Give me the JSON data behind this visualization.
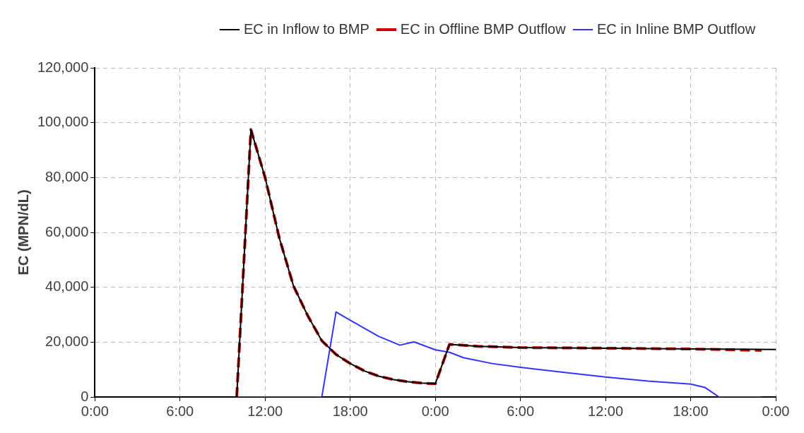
{
  "chart_data": {
    "type": "line",
    "ylabel": "EC (MPN/dL)",
    "xlim": [
      "--01-01T00:00",
      "--01-03T00:00"
    ],
    "xticks": [
      {
        "value": "--01-01T00:00",
        "label": "0:00"
      },
      {
        "value": "--01-01T06:00",
        "label": "6:00"
      },
      {
        "value": "--01-01T12:00",
        "label": "12:00"
      },
      {
        "value": "--01-01T18:00",
        "label": "18:00"
      },
      {
        "value": "--01-02T00:00",
        "label": "0:00"
      },
      {
        "value": "--01-02T06:00",
        "label": "6:00"
      },
      {
        "value": "--01-02T12:00",
        "label": "12:00"
      },
      {
        "value": "--01-02T18:00",
        "label": "18:00"
      },
      {
        "value": "--01-03T00:00",
        "label": "0:00"
      }
    ],
    "ylim": [
      0,
      120000
    ],
    "yticks": [
      0,
      {
        "value": 20000,
        "label": "20,000"
      },
      {
        "value": 40000,
        "label": "40,000"
      },
      {
        "value": 60000,
        "label": "60,000"
      },
      {
        "value": 80000,
        "label": "80,000"
      },
      {
        "value": 100000,
        "label": "100,000"
      },
      {
        "value": 120000,
        "label": "120,000"
      }
    ],
    "grid": true,
    "legend": "top",
    "marker": "none",
    "series": [
      {
        "name": "EC in Inflow to BMP",
        "color": "#000000",
        "line_style": "solid",
        "x": [
          "--01-01T01:00",
          "--01-01T10:00",
          "--01-01T11:00",
          "--01-01T12:00",
          "--01-01T13:00",
          "--01-01T14:00",
          "--01-01T15:00",
          "--01-01T16:00",
          "--01-01T17:00",
          "--01-01T18:00",
          "--01-01T19:00",
          "--01-01T20:00",
          "--01-01T21:00",
          "--01-01T22:00",
          "--01-01T23:00",
          "--01-02T00:00",
          "--01-02T01:00",
          "--01-02T03:00",
          "--01-02T06:00",
          "--01-02T12:00",
          "--01-02T18:00",
          "--01-03T00:00"
        ],
        "values": [
          0,
          0,
          97500,
          80000,
          58000,
          40500,
          29700,
          20500,
          15500,
          12200,
          9500,
          7600,
          6400,
          5600,
          5100,
          4800,
          19200,
          18500,
          18000,
          17800,
          17500,
          17300
        ]
      },
      {
        "name": "EC in Offline BMP Outflow",
        "color": "#cc0000",
        "line_style": "dashed",
        "x": [
          "--01-01T10:00",
          "--01-01T11:00",
          "--01-01T12:00",
          "--01-01T13:00",
          "--01-01T14:00",
          "--01-01T15:00",
          "--01-01T16:00",
          "--01-01T17:00",
          "--01-01T18:00",
          "--01-01T19:00",
          "--01-01T20:00",
          "--01-01T21:00",
          "--01-01T22:00",
          "--01-01T23:00",
          "--01-02T00:00",
          "--01-02T01:00",
          "--01-02T03:00",
          "--01-02T06:00",
          "--01-02T12:00",
          "--01-02T18:00",
          "--01-02T23:00"
        ],
        "values": [
          0,
          97500,
          80000,
          58000,
          40500,
          29700,
          20500,
          15500,
          12200,
          9500,
          7600,
          6400,
          5600,
          5100,
          4800,
          19200,
          18500,
          18000,
          17800,
          17500,
          17000
        ]
      },
      {
        "name": "EC in Inline BMP Outflow",
        "color": "#3333ff",
        "line_style": "solid",
        "x": [
          "--01-01T01:00",
          "--01-01T16:00",
          "--01-01T17:00",
          "--01-01T18:00",
          "--01-01T20:00",
          "--01-01T21:30",
          "--01-01T22:30",
          "--01-02T00:00",
          "--01-02T01:00",
          "--01-02T02:00",
          "--01-02T04:00",
          "--01-02T06:00",
          "--01-02T09:00",
          "--01-02T12:00",
          "--01-02T15:00",
          "--01-02T18:00",
          "--01-02T19:00",
          "--01-02T20:00",
          "--01-02T23:00"
        ],
        "values": [
          0,
          0,
          31000,
          28000,
          22100,
          18900,
          20100,
          17200,
          16300,
          14300,
          12200,
          10800,
          9000,
          7300,
          5800,
          4700,
          3500,
          0,
          0
        ]
      }
    ]
  }
}
